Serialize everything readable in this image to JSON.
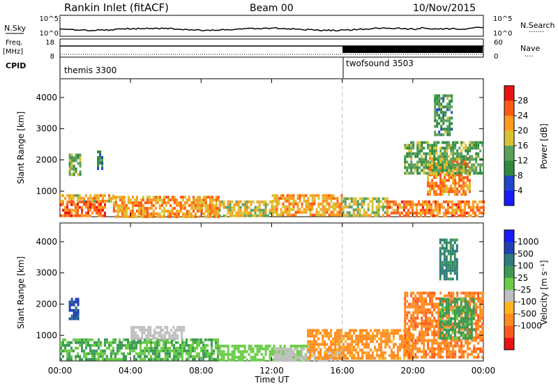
{
  "header": {
    "station": "Rankin Inlet (fitACF)",
    "beam": "Beam 00",
    "date": "10/Nov/2015"
  },
  "noise_panel": {
    "left_label": "N.Sky",
    "right_label": "N.Search",
    "right_dots": "·······",
    "left_ticks": [
      "10^5",
      "10^0"
    ],
    "right_ticks": [
      "10^5",
      "10^0"
    ]
  },
  "freq_panel": {
    "left_label_1": "Freq.",
    "left_label_2": "[MHz]",
    "left_ticks": [
      "18",
      "8"
    ],
    "right_label": "Nave",
    "right_dots": "····",
    "right_ticks": [
      "60",
      "0"
    ]
  },
  "cpid": {
    "label": "CPID",
    "segments": [
      {
        "name": "themis 3300",
        "start_hour": 0,
        "end_hour": 16
      },
      {
        "name": "twofsound 3503",
        "start_hour": 16,
        "end_hour": 24
      }
    ]
  },
  "colors": {
    "power": [
      "#1a1aff",
      "#2048c8",
      "#2f8a3e",
      "#5aa15a",
      "#d9c232",
      "#ff9a1e",
      "#ff5a14",
      "#e81414"
    ],
    "velocity": [
      "#e81414",
      "#ff5a1e",
      "#ff8c1e",
      "#ffb41e",
      "#bfbfbf",
      "#6acc46",
      "#3c9a55",
      "#2f7a7a",
      "#2040b4",
      "#1a1aff"
    ]
  },
  "chart_data": [
    {
      "type": "heatmap",
      "name_of_panel": "power",
      "ylabel": "Slant Range [km]",
      "xlabel": "",
      "x_ticks": [
        "00:00",
        "04:00",
        "08:00",
        "12:00",
        "16:00",
        "20:00",
        "00:00"
      ],
      "xlim_hours": [
        0,
        24
      ],
      "y_ticks": [
        "1000",
        "2000",
        "3000",
        "4000"
      ],
      "ylim": [
        180,
        4600
      ],
      "colorbar": {
        "label": "Power [dB]",
        "ticks": [
          "4",
          "8",
          "12",
          "16",
          "20",
          "24",
          "28"
        ],
        "range": [
          0,
          32
        ]
      },
      "regions": [
        {
          "x0": 0.0,
          "x1": 2.6,
          "y0": 200,
          "y1": 700,
          "value": 26
        },
        {
          "x0": 0.0,
          "x1": 3.0,
          "y0": 700,
          "y1": 900,
          "value": 20
        },
        {
          "x0": 3.0,
          "x1": 9.0,
          "y0": 200,
          "y1": 850,
          "value": 22
        },
        {
          "x0": 9.0,
          "x1": 12.0,
          "y0": 200,
          "y1": 700,
          "value": 18
        },
        {
          "x0": 12.0,
          "x1": 16.0,
          "y0": 200,
          "y1": 900,
          "value": 21
        },
        {
          "x0": 16.0,
          "x1": 18.5,
          "y0": 200,
          "y1": 800,
          "value": 17
        },
        {
          "x0": 18.5,
          "x1": 24.0,
          "y0": 200,
          "y1": 700,
          "value": 24
        },
        {
          "x0": 0.5,
          "x1": 1.2,
          "y0": 1500,
          "y1": 2200,
          "value": 14
        },
        {
          "x0": 2.1,
          "x1": 2.4,
          "y0": 1700,
          "y1": 2300,
          "value": 9
        },
        {
          "x0": 20.8,
          "x1": 23.2,
          "y0": 900,
          "y1": 2100,
          "value": 23
        },
        {
          "x0": 19.5,
          "x1": 24.0,
          "y0": 1600,
          "y1": 2600,
          "value": 13
        },
        {
          "x0": 21.2,
          "x1": 22.2,
          "y0": 2800,
          "y1": 4100,
          "value": 12
        }
      ]
    },
    {
      "type": "heatmap",
      "name_of_panel": "velocity",
      "ylabel": "Slant Range [km]",
      "xlabel": "Time UT",
      "x_ticks": [
        "00:00",
        "04:00",
        "08:00",
        "12:00",
        "16:00",
        "20:00",
        "00:00"
      ],
      "xlim_hours": [
        0,
        24
      ],
      "y_ticks": [
        "1000",
        "2000",
        "3000",
        "4000"
      ],
      "ylim": [
        180,
        4600
      ],
      "colorbar": {
        "label": "Velocity [m s⁻¹]",
        "ticks": [
          "1000",
          "500",
          "100",
          "25",
          "-25",
          "-100",
          "-500",
          "-1000"
        ]
      },
      "regions": [
        {
          "x0": 0.0,
          "x1": 9.0,
          "y0": 200,
          "y1": 900,
          "value": 100
        },
        {
          "x0": 4.0,
          "x1": 7.0,
          "y0": 900,
          "y1": 1300,
          "value": 0
        },
        {
          "x0": 9.0,
          "x1": 14.0,
          "y0": 200,
          "y1": 700,
          "value": 60
        },
        {
          "x0": 12.0,
          "x1": 16.0,
          "y0": 200,
          "y1": 600,
          "value": 0
        },
        {
          "x0": 14.0,
          "x1": 20.0,
          "y0": 300,
          "y1": 1200,
          "value": -150
        },
        {
          "x0": 19.5,
          "x1": 24.0,
          "y0": 300,
          "y1": 2400,
          "value": -400
        },
        {
          "x0": 21.5,
          "x1": 23.5,
          "y0": 900,
          "y1": 2200,
          "value": 150
        },
        {
          "x0": 0.5,
          "x1": 1.0,
          "y0": 1500,
          "y1": 2200,
          "value": 600
        },
        {
          "x0": 21.5,
          "x1": 22.5,
          "y0": 2800,
          "y1": 4100,
          "value": 300
        }
      ]
    }
  ]
}
